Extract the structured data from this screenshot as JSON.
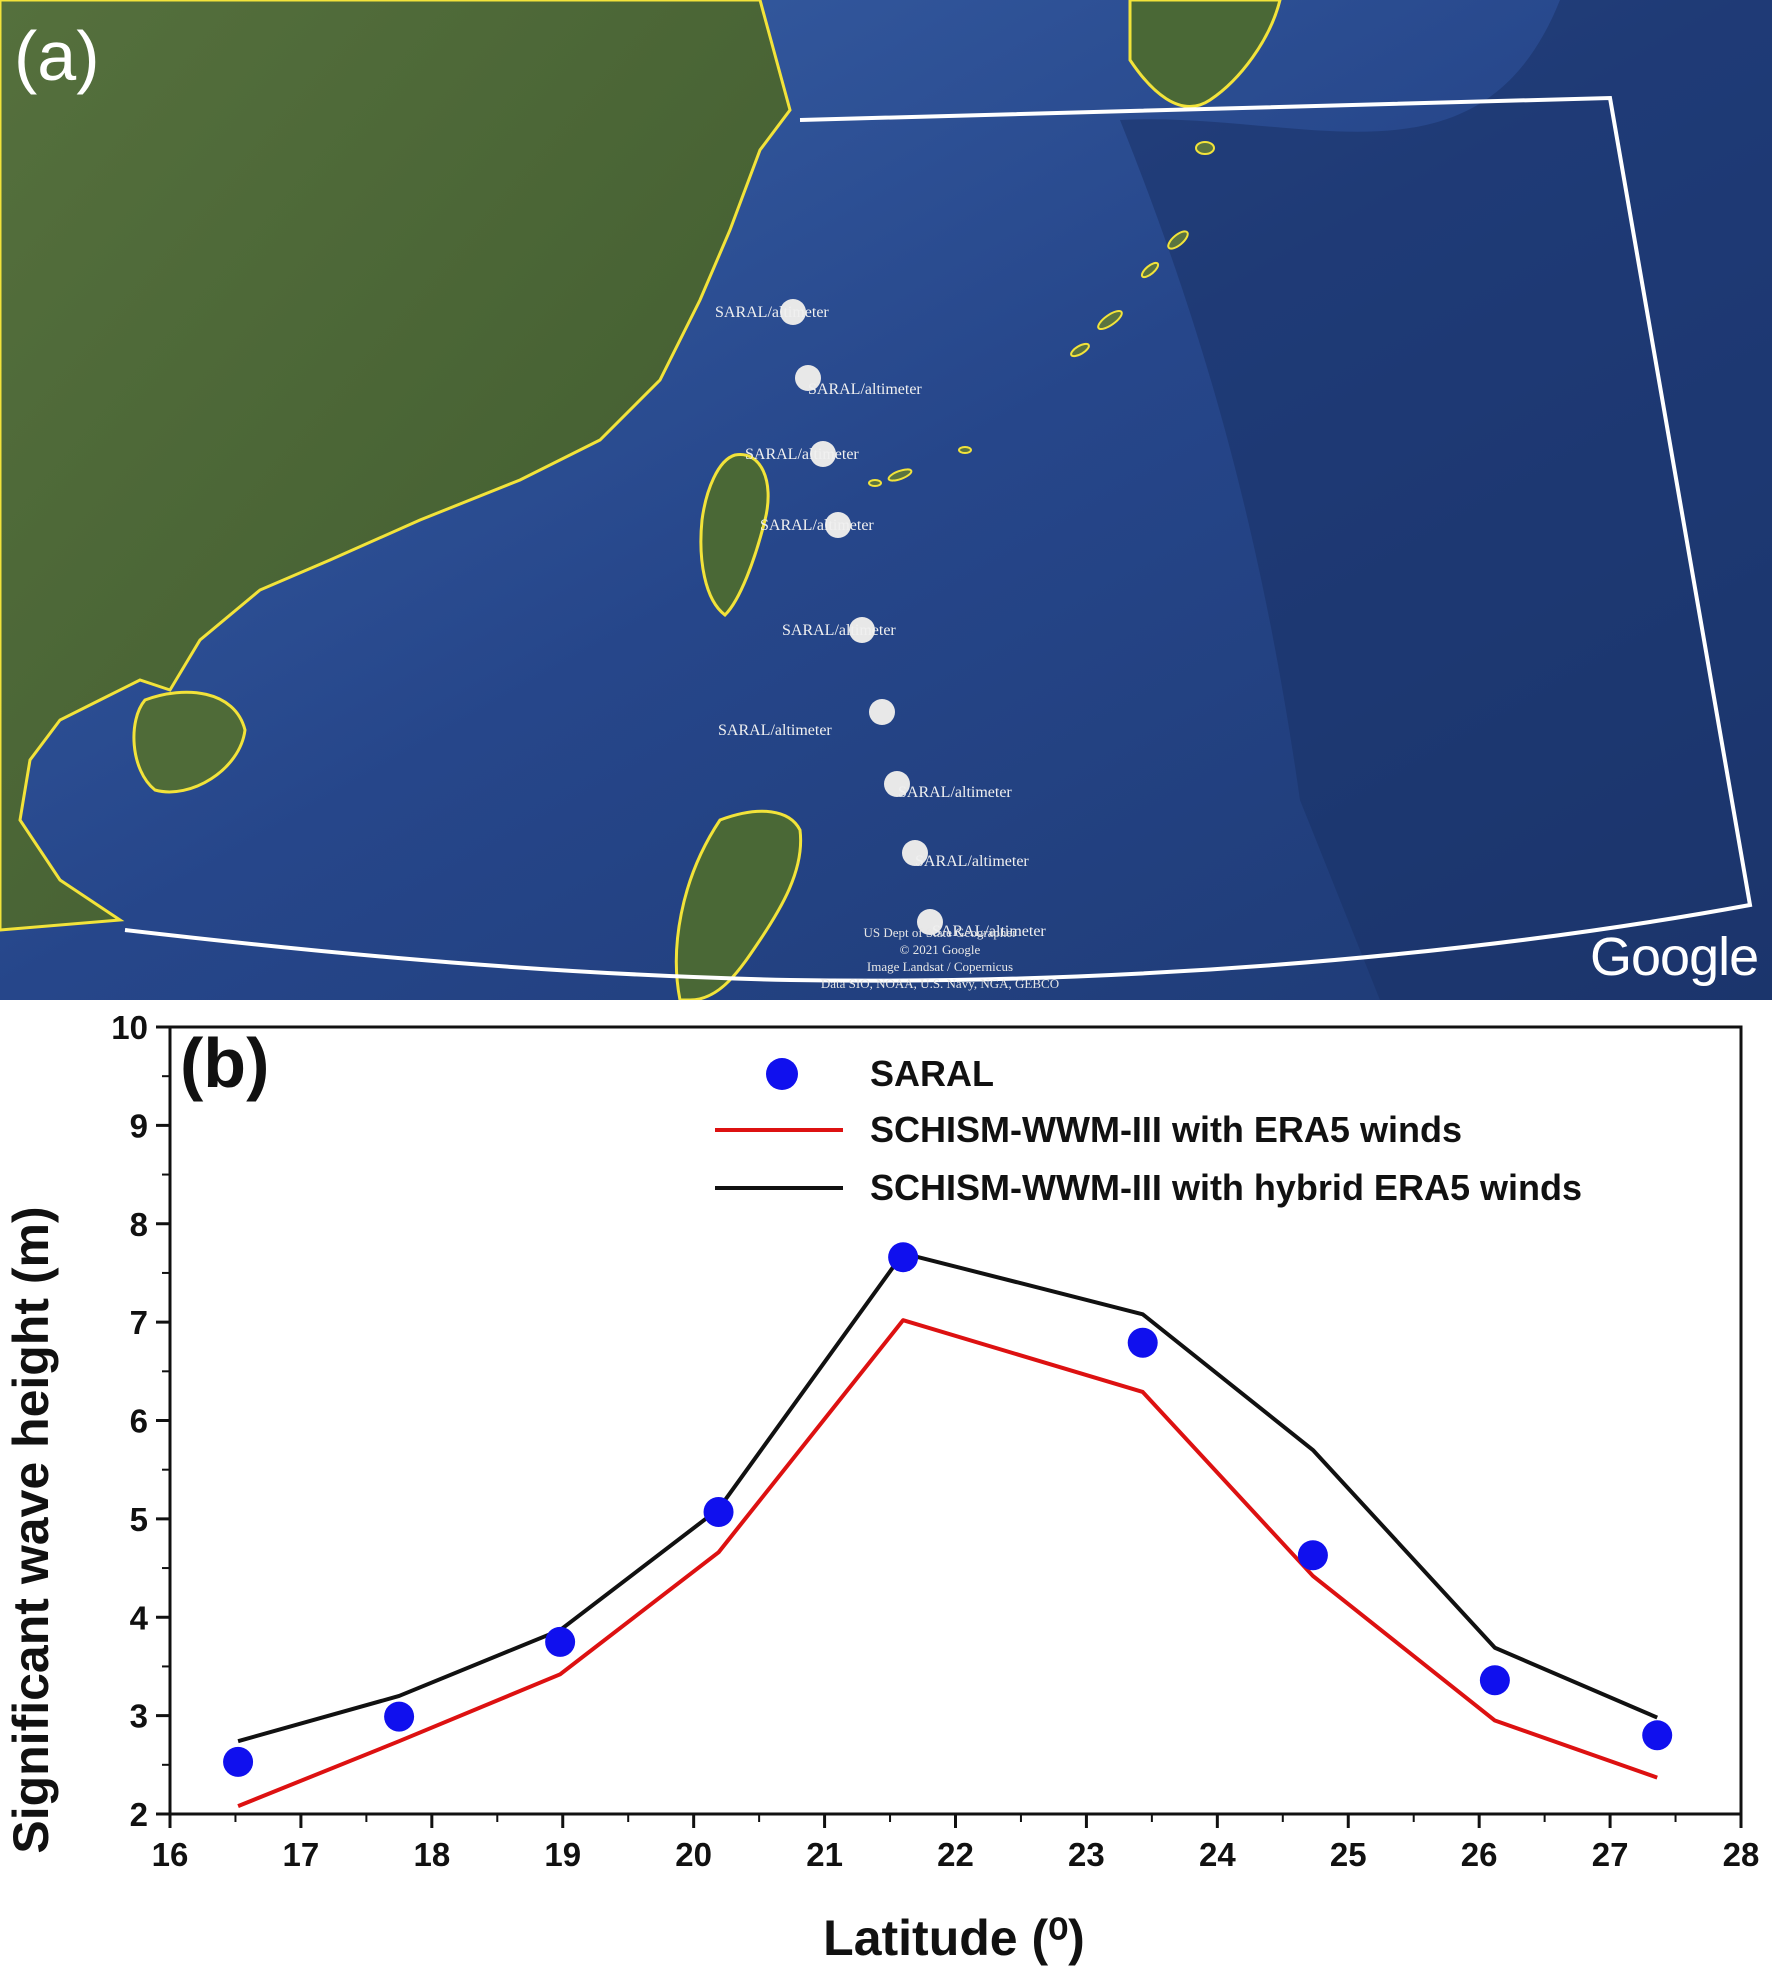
{
  "map_panel": {
    "panel_label": "(a)",
    "marker_label": "SARAL/altimeter",
    "google_logo": "Google",
    "credits": [
      "US Dept of State Geographer",
      "© 2021 Google",
      "Image Landsat / Copernicus",
      "Data SIO, NOAA, U.S. Navy, NGA, GEBCO"
    ],
    "colors": {
      "ocean": "#2a4f8c",
      "land": "#4d6a36",
      "coastline": "#f2e33a",
      "domain_outline": "#ffffff",
      "marker": "#e8e8e8"
    }
  },
  "chart_panel": {
    "panel_label": "(b)"
  },
  "chart_data": {
    "type": "line",
    "xlabel": "Latitude (⁰)",
    "ylabel": "Significant wave height (m)",
    "xlim": [
      16,
      28
    ],
    "ylim": [
      2,
      10
    ],
    "xticks": [
      "16",
      "17",
      "18",
      "19",
      "20",
      "21",
      "22",
      "23",
      "24",
      "25",
      "26",
      "27",
      "28"
    ],
    "yticks": [
      "2",
      "3",
      "4",
      "5",
      "6",
      "7",
      "8",
      "9",
      "10"
    ],
    "legend_position": "top-right",
    "grid": false,
    "series": [
      {
        "name": "SARAL",
        "kind": "scatter",
        "color": "#1010ee",
        "x": [
          16.52,
          17.75,
          18.98,
          20.19,
          21.6,
          23.43,
          24.73,
          26.12,
          27.36
        ],
        "y": [
          2.53,
          2.99,
          3.75,
          5.07,
          7.66,
          6.79,
          4.63,
          3.36,
          2.8
        ]
      },
      {
        "name": "SCHISM-WWM-III with ERA5 winds",
        "kind": "line",
        "color": "#dd1111",
        "x": [
          16.52,
          17.75,
          18.98,
          20.19,
          21.6,
          23.43,
          24.73,
          26.12,
          27.36
        ],
        "y": [
          2.08,
          2.74,
          3.42,
          4.66,
          7.02,
          6.29,
          4.42,
          2.95,
          2.37
        ]
      },
      {
        "name": "SCHISM-WWM-III with hybrid ERA5 winds",
        "kind": "line",
        "color": "#111111",
        "x": [
          16.52,
          17.75,
          18.98,
          20.19,
          21.6,
          23.43,
          24.73,
          26.12,
          27.36
        ],
        "y": [
          2.74,
          3.2,
          3.87,
          5.1,
          7.7,
          7.08,
          5.7,
          3.69,
          2.98
        ]
      }
    ]
  }
}
